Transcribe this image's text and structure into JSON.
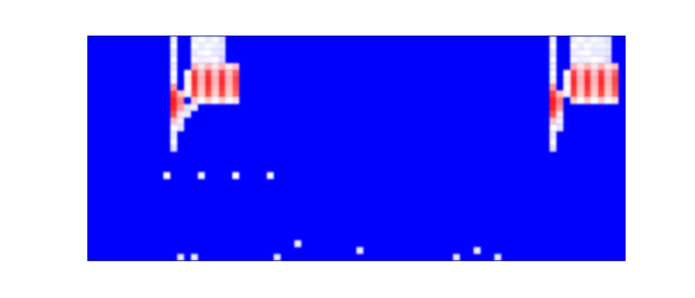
{
  "chart_data": {
    "type": "heatmap",
    "tick_labels": false,
    "xlim": [
      0,
      78
    ],
    "ylim": [
      0,
      33
    ],
    "zlim": [
      0,
      1
    ],
    "cells": [
      [
        12,
        32,
        0.48
      ],
      [
        12,
        31,
        0.5
      ],
      [
        12,
        30,
        0.46
      ],
      [
        12,
        29,
        0.5
      ],
      [
        12,
        28,
        0.47
      ],
      [
        12,
        27,
        0.5
      ],
      [
        12,
        26,
        0.52
      ],
      [
        12,
        25,
        0.7
      ],
      [
        12,
        24,
        0.88
      ],
      [
        12,
        23,
        0.95
      ],
      [
        12,
        22,
        0.93
      ],
      [
        12,
        21,
        0.85
      ],
      [
        12,
        20,
        0.62
      ],
      [
        12,
        19,
        0.5
      ],
      [
        12,
        18,
        0.46
      ],
      [
        12,
        17,
        0.49
      ],
      [
        12,
        16,
        0.44
      ],
      [
        13,
        24,
        0.62
      ],
      [
        13,
        23,
        0.75
      ],
      [
        13,
        22,
        0.7
      ],
      [
        13,
        21,
        0.55
      ],
      [
        13,
        20,
        0.47
      ],
      [
        13,
        19,
        0.45
      ],
      [
        15,
        32,
        0.47
      ],
      [
        15,
        31,
        0.5
      ],
      [
        15,
        30,
        0.46
      ],
      [
        15,
        29,
        0.49
      ],
      [
        16,
        32,
        0.5
      ],
      [
        16,
        31,
        0.46
      ],
      [
        16,
        30,
        0.49
      ],
      [
        16,
        29,
        0.47
      ],
      [
        17,
        32,
        0.46
      ],
      [
        17,
        31,
        0.49
      ],
      [
        17,
        30,
        0.5
      ],
      [
        17,
        29,
        0.48
      ],
      [
        18,
        32,
        0.49
      ],
      [
        18,
        31,
        0.47
      ],
      [
        18,
        30,
        0.46
      ],
      [
        18,
        29,
        0.5
      ],
      [
        19,
        32,
        0.44
      ],
      [
        19,
        31,
        0.46
      ],
      [
        19,
        30,
        0.45
      ],
      [
        19,
        29,
        0.43
      ],
      [
        15,
        28,
        0.65
      ],
      [
        15,
        27,
        0.88
      ],
      [
        15,
        26,
        0.92
      ],
      [
        15,
        25,
        0.9
      ],
      [
        15,
        24,
        0.86
      ],
      [
        15,
        23,
        0.6
      ],
      [
        16,
        28,
        0.55
      ],
      [
        16,
        27,
        0.62
      ],
      [
        16,
        26,
        0.64
      ],
      [
        16,
        25,
        0.62
      ],
      [
        16,
        24,
        0.6
      ],
      [
        16,
        23,
        0.5
      ],
      [
        17,
        28,
        0.65
      ],
      [
        17,
        27,
        0.88
      ],
      [
        17,
        26,
        0.92
      ],
      [
        17,
        25,
        0.9
      ],
      [
        17,
        24,
        0.86
      ],
      [
        17,
        23,
        0.6
      ],
      [
        18,
        28,
        0.55
      ],
      [
        18,
        27,
        0.62
      ],
      [
        18,
        26,
        0.64
      ],
      [
        18,
        25,
        0.62
      ],
      [
        18,
        24,
        0.6
      ],
      [
        18,
        23,
        0.5
      ],
      [
        19,
        28,
        0.65
      ],
      [
        19,
        27,
        0.88
      ],
      [
        19,
        26,
        0.92
      ],
      [
        19,
        25,
        0.9
      ],
      [
        19,
        24,
        0.86
      ],
      [
        19,
        23,
        0.6
      ],
      [
        20,
        28,
        0.55
      ],
      [
        20,
        27,
        0.62
      ],
      [
        20,
        26,
        0.64
      ],
      [
        20,
        25,
        0.62
      ],
      [
        20,
        24,
        0.6
      ],
      [
        20,
        23,
        0.5
      ],
      [
        21,
        28,
        0.62
      ],
      [
        21,
        27,
        0.82
      ],
      [
        21,
        26,
        0.86
      ],
      [
        21,
        25,
        0.84
      ],
      [
        21,
        24,
        0.8
      ],
      [
        21,
        23,
        0.55
      ],
      [
        14,
        27,
        0.5
      ],
      [
        14,
        26,
        0.52
      ],
      [
        14,
        25,
        0.5
      ],
      [
        14,
        24,
        0.48
      ],
      [
        14,
        22,
        0.45
      ],
      [
        14,
        21,
        0.46
      ],
      [
        15,
        22,
        0.47
      ],
      [
        11,
        12,
        0.5
      ],
      [
        16,
        12,
        0.48
      ],
      [
        21,
        12,
        0.5
      ],
      [
        26,
        12,
        0.49
      ],
      [
        13,
        0,
        0.45
      ],
      [
        15,
        0,
        0.46
      ],
      [
        27,
        0,
        0.45
      ],
      [
        30,
        2,
        0.47
      ],
      [
        39,
        1,
        0.46
      ],
      [
        53,
        0,
        0.45
      ],
      [
        56,
        1,
        0.47
      ],
      [
        59,
        0,
        0.45
      ],
      [
        67,
        32,
        0.48
      ],
      [
        67,
        31,
        0.5
      ],
      [
        67,
        30,
        0.46
      ],
      [
        67,
        29,
        0.5
      ],
      [
        67,
        28,
        0.47
      ],
      [
        67,
        27,
        0.5
      ],
      [
        67,
        26,
        0.52
      ],
      [
        67,
        25,
        0.7
      ],
      [
        67,
        24,
        0.88
      ],
      [
        67,
        23,
        0.95
      ],
      [
        67,
        22,
        0.93
      ],
      [
        67,
        21,
        0.85
      ],
      [
        67,
        20,
        0.62
      ],
      [
        67,
        19,
        0.5
      ],
      [
        67,
        18,
        0.46
      ],
      [
        67,
        17,
        0.49
      ],
      [
        67,
        16,
        0.44
      ],
      [
        68,
        24,
        0.62
      ],
      [
        68,
        23,
        0.75
      ],
      [
        68,
        22,
        0.7
      ],
      [
        68,
        21,
        0.55
      ],
      [
        68,
        20,
        0.47
      ],
      [
        68,
        19,
        0.45
      ],
      [
        70,
        32,
        0.47
      ],
      [
        70,
        31,
        0.5
      ],
      [
        70,
        30,
        0.46
      ],
      [
        70,
        29,
        0.49
      ],
      [
        71,
        32,
        0.5
      ],
      [
        71,
        31,
        0.46
      ],
      [
        71,
        30,
        0.49
      ],
      [
        71,
        29,
        0.47
      ],
      [
        72,
        32,
        0.46
      ],
      [
        72,
        31,
        0.49
      ],
      [
        72,
        30,
        0.5
      ],
      [
        72,
        29,
        0.48
      ],
      [
        73,
        32,
        0.49
      ],
      [
        73,
        31,
        0.47
      ],
      [
        73,
        30,
        0.46
      ],
      [
        73,
        29,
        0.5
      ],
      [
        74,
        32,
        0.47
      ],
      [
        74,
        31,
        0.48
      ],
      [
        74,
        30,
        0.46
      ],
      [
        74,
        29,
        0.49
      ],
      [
        75,
        32,
        0.44
      ],
      [
        75,
        31,
        0.46
      ],
      [
        75,
        30,
        0.45
      ],
      [
        75,
        29,
        0.43
      ],
      [
        70,
        28,
        0.65
      ],
      [
        70,
        27,
        0.88
      ],
      [
        70,
        26,
        0.92
      ],
      [
        70,
        25,
        0.9
      ],
      [
        70,
        24,
        0.86
      ],
      [
        70,
        23,
        0.6
      ],
      [
        71,
        28,
        0.55
      ],
      [
        71,
        27,
        0.62
      ],
      [
        71,
        26,
        0.64
      ],
      [
        71,
        25,
        0.62
      ],
      [
        71,
        24,
        0.6
      ],
      [
        71,
        23,
        0.5
      ],
      [
        72,
        28,
        0.65
      ],
      [
        72,
        27,
        0.88
      ],
      [
        72,
        26,
        0.92
      ],
      [
        72,
        25,
        0.9
      ],
      [
        72,
        24,
        0.86
      ],
      [
        72,
        23,
        0.6
      ],
      [
        73,
        28,
        0.55
      ],
      [
        73,
        27,
        0.62
      ],
      [
        73,
        26,
        0.64
      ],
      [
        73,
        25,
        0.62
      ],
      [
        73,
        24,
        0.6
      ],
      [
        73,
        23,
        0.5
      ],
      [
        74,
        28,
        0.65
      ],
      [
        74,
        27,
        0.88
      ],
      [
        74,
        26,
        0.92
      ],
      [
        74,
        25,
        0.9
      ],
      [
        74,
        24,
        0.86
      ],
      [
        74,
        23,
        0.6
      ],
      [
        75,
        28,
        0.55
      ],
      [
        75,
        27,
        0.62
      ],
      [
        75,
        26,
        0.64
      ],
      [
        75,
        25,
        0.62
      ],
      [
        75,
        24,
        0.6
      ],
      [
        75,
        23,
        0.5
      ],
      [
        76,
        28,
        0.62
      ],
      [
        76,
        27,
        0.82
      ],
      [
        76,
        26,
        0.86
      ],
      [
        76,
        25,
        0.84
      ],
      [
        76,
        24,
        0.8
      ],
      [
        76,
        23,
        0.55
      ],
      [
        69,
        27,
        0.5
      ],
      [
        69,
        26,
        0.52
      ],
      [
        69,
        25,
        0.5
      ],
      [
        69,
        24,
        0.48
      ]
    ]
  }
}
